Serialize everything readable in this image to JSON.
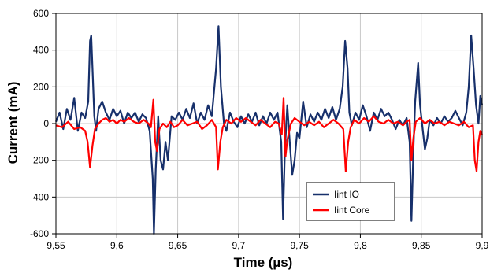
{
  "chart_data": {
    "type": "line",
    "title": "",
    "xlabel": "Time (µs)",
    "ylabel": "Current (mA)",
    "xlim": [
      9.55,
      9.9
    ],
    "ylim": [
      -600,
      600
    ],
    "x_ticks": [
      9.55,
      9.6,
      9.65,
      9.7,
      9.75,
      9.8,
      9.85,
      9.9
    ],
    "x_tick_labels": [
      "9,55",
      "9,6",
      "9,65",
      "9,7",
      "9,75",
      "9,8",
      "9,85",
      "9,9"
    ],
    "y_ticks": [
      -600,
      -400,
      -200,
      0,
      200,
      400,
      600
    ],
    "y_tick_labels": [
      "-600",
      "-400",
      "-200",
      "0",
      "200",
      "400",
      "600"
    ],
    "grid": true,
    "legend_position": "bottom-right",
    "series": [
      {
        "name": "Iint IO",
        "color": "#17306b",
        "points": [
          [
            9.55,
            10
          ],
          [
            9.553,
            60
          ],
          [
            9.556,
            -30
          ],
          [
            9.559,
            80
          ],
          [
            9.562,
            20
          ],
          [
            9.565,
            140
          ],
          [
            9.568,
            -40
          ],
          [
            9.571,
            60
          ],
          [
            9.574,
            30
          ],
          [
            9.5765,
            120
          ],
          [
            9.578,
            450
          ],
          [
            9.579,
            480
          ],
          [
            9.58,
            300
          ],
          [
            9.5815,
            40
          ],
          [
            9.583,
            -40
          ],
          [
            9.585,
            80
          ],
          [
            9.588,
            120
          ],
          [
            9.591,
            60
          ],
          [
            9.594,
            20
          ],
          [
            9.597,
            80
          ],
          [
            9.6,
            40
          ],
          [
            9.603,
            70
          ],
          [
            9.606,
            0
          ],
          [
            9.609,
            60
          ],
          [
            9.612,
            30
          ],
          [
            9.615,
            60
          ],
          [
            9.618,
            10
          ],
          [
            9.621,
            50
          ],
          [
            9.624,
            30
          ],
          [
            9.627,
            -40
          ],
          [
            9.6295,
            -300
          ],
          [
            9.6305,
            -600
          ],
          [
            9.632,
            -250
          ],
          [
            9.634,
            40
          ],
          [
            9.636,
            -200
          ],
          [
            9.638,
            -250
          ],
          [
            9.64,
            -100
          ],
          [
            9.642,
            -200
          ],
          [
            9.645,
            40
          ],
          [
            9.648,
            20
          ],
          [
            9.651,
            60
          ],
          [
            9.654,
            20
          ],
          [
            9.657,
            80
          ],
          [
            9.66,
            30
          ],
          [
            9.663,
            110
          ],
          [
            9.666,
            0
          ],
          [
            9.669,
            60
          ],
          [
            9.672,
            20
          ],
          [
            9.675,
            100
          ],
          [
            9.678,
            40
          ],
          [
            9.6815,
            300
          ],
          [
            9.6835,
            530
          ],
          [
            9.6855,
            200
          ],
          [
            9.688,
            0
          ],
          [
            9.69,
            -40
          ],
          [
            9.693,
            60
          ],
          [
            9.696,
            10
          ],
          [
            9.699,
            -20
          ],
          [
            9.702,
            40
          ],
          [
            9.705,
            0
          ],
          [
            9.708,
            50
          ],
          [
            9.711,
            10
          ],
          [
            9.714,
            60
          ],
          [
            9.717,
            -10
          ],
          [
            9.72,
            40
          ],
          [
            9.723,
            0
          ],
          [
            9.726,
            60
          ],
          [
            9.729,
            20
          ],
          [
            9.732,
            60
          ],
          [
            9.735,
            -100
          ],
          [
            9.7365,
            -520
          ],
          [
            9.738,
            -150
          ],
          [
            9.74,
            100
          ],
          [
            9.742,
            -100
          ],
          [
            9.744,
            -280
          ],
          [
            9.746,
            -200
          ],
          [
            9.748,
            -50
          ],
          [
            9.75,
            -80
          ],
          [
            9.753,
            120
          ],
          [
            9.756,
            -20
          ],
          [
            9.759,
            50
          ],
          [
            9.762,
            10
          ],
          [
            9.765,
            60
          ],
          [
            9.768,
            20
          ],
          [
            9.771,
            80
          ],
          [
            9.774,
            30
          ],
          [
            9.777,
            90
          ],
          [
            9.78,
            20
          ],
          [
            9.783,
            80
          ],
          [
            9.7855,
            200
          ],
          [
            9.7875,
            450
          ],
          [
            9.7895,
            300
          ],
          [
            9.791,
            60
          ],
          [
            9.793,
            -10
          ],
          [
            9.796,
            60
          ],
          [
            9.799,
            20
          ],
          [
            9.802,
            100
          ],
          [
            9.805,
            40
          ],
          [
            9.808,
            -40
          ],
          [
            9.811,
            60
          ],
          [
            9.814,
            20
          ],
          [
            9.817,
            80
          ],
          [
            9.82,
            40
          ],
          [
            9.823,
            60
          ],
          [
            9.826,
            20
          ],
          [
            9.829,
            -30
          ],
          [
            9.832,
            20
          ],
          [
            9.835,
            -10
          ],
          [
            9.838,
            30
          ],
          [
            9.8405,
            -100
          ],
          [
            9.842,
            -530
          ],
          [
            9.8435,
            -150
          ],
          [
            9.845,
            120
          ],
          [
            9.8475,
            330
          ],
          [
            9.849,
            100
          ],
          [
            9.851,
            -20
          ],
          [
            9.853,
            -140
          ],
          [
            9.855,
            -80
          ],
          [
            9.857,
            20
          ],
          [
            9.86,
            -10
          ],
          [
            9.863,
            30
          ],
          [
            9.866,
            0
          ],
          [
            9.869,
            40
          ],
          [
            9.872,
            10
          ],
          [
            9.875,
            30
          ],
          [
            9.878,
            70
          ],
          [
            9.881,
            30
          ],
          [
            9.884,
            -10
          ],
          [
            9.887,
            60
          ],
          [
            9.889,
            200
          ],
          [
            9.891,
            480
          ],
          [
            9.893,
            300
          ],
          [
            9.895,
            100
          ],
          [
            9.897,
            0
          ],
          [
            9.8985,
            150
          ],
          [
            9.9,
            100
          ]
        ]
      },
      {
        "name": "Iint Core",
        "color": "#ff0000",
        "points": [
          [
            9.55,
            -10
          ],
          [
            9.555,
            -20
          ],
          [
            9.56,
            10
          ],
          [
            9.565,
            -30
          ],
          [
            9.57,
            -20
          ],
          [
            9.574,
            -40
          ],
          [
            9.576,
            -100
          ],
          [
            9.578,
            -240
          ],
          [
            9.58,
            -120
          ],
          [
            9.582,
            -30
          ],
          [
            9.585,
            0
          ],
          [
            9.588,
            20
          ],
          [
            9.591,
            30
          ],
          [
            9.594,
            10
          ],
          [
            9.597,
            20
          ],
          [
            9.6,
            0
          ],
          [
            9.603,
            20
          ],
          [
            9.606,
            10
          ],
          [
            9.61,
            30
          ],
          [
            9.614,
            10
          ],
          [
            9.618,
            0
          ],
          [
            9.622,
            20
          ],
          [
            9.626,
            0
          ],
          [
            9.628,
            -20
          ],
          [
            9.63,
            130
          ],
          [
            9.6315,
            -100
          ],
          [
            9.633,
            -150
          ],
          [
            9.635,
            -30
          ],
          [
            9.638,
            0
          ],
          [
            9.641,
            -20
          ],
          [
            9.644,
            10
          ],
          [
            9.647,
            -20
          ],
          [
            9.65,
            -10
          ],
          [
            9.654,
            20
          ],
          [
            9.658,
            -10
          ],
          [
            9.662,
            0
          ],
          [
            9.666,
            10
          ],
          [
            9.67,
            -30
          ],
          [
            9.674,
            -10
          ],
          [
            9.678,
            20
          ],
          [
            9.6815,
            -20
          ],
          [
            9.683,
            -250
          ],
          [
            9.685,
            -100
          ],
          [
            9.687,
            -20
          ],
          [
            9.69,
            20
          ],
          [
            9.694,
            0
          ],
          [
            9.698,
            30
          ],
          [
            9.702,
            10
          ],
          [
            9.706,
            30
          ],
          [
            9.71,
            10
          ],
          [
            9.714,
            -10
          ],
          [
            9.718,
            20
          ],
          [
            9.722,
            0
          ],
          [
            9.726,
            -20
          ],
          [
            9.73,
            10
          ],
          [
            9.733,
            0
          ],
          [
            9.7355,
            -60
          ],
          [
            9.737,
            140
          ],
          [
            9.7385,
            -180
          ],
          [
            9.74,
            -90
          ],
          [
            9.743,
            0
          ],
          [
            9.746,
            30
          ],
          [
            9.75,
            10
          ],
          [
            9.754,
            -10
          ],
          [
            9.758,
            10
          ],
          [
            9.762,
            -10
          ],
          [
            9.766,
            10
          ],
          [
            9.77,
            -20
          ],
          [
            9.774,
            0
          ],
          [
            9.778,
            20
          ],
          [
            9.782,
            0
          ],
          [
            9.786,
            -30
          ],
          [
            9.788,
            -260
          ],
          [
            9.79,
            -100
          ],
          [
            9.792,
            -20
          ],
          [
            9.795,
            20
          ],
          [
            9.799,
            0
          ],
          [
            9.803,
            30
          ],
          [
            9.807,
            10
          ],
          [
            9.811,
            40
          ],
          [
            9.815,
            10
          ],
          [
            9.819,
            0
          ],
          [
            9.823,
            20
          ],
          [
            9.827,
            0
          ],
          [
            9.831,
            10
          ],
          [
            9.835,
            -10
          ],
          [
            9.838,
            10
          ],
          [
            9.8405,
            20
          ],
          [
            9.842,
            -200
          ],
          [
            9.8435,
            -80
          ],
          [
            9.8455,
            10
          ],
          [
            9.849,
            30
          ],
          [
            9.853,
            0
          ],
          [
            9.857,
            20
          ],
          [
            9.861,
            0
          ],
          [
            9.865,
            10
          ],
          [
            9.869,
            -10
          ],
          [
            9.873,
            10
          ],
          [
            9.877,
            0
          ],
          [
            9.881,
            -10
          ],
          [
            9.885,
            10
          ],
          [
            9.889,
            -20
          ],
          [
            9.8925,
            -10
          ],
          [
            9.894,
            -200
          ],
          [
            9.8955,
            -260
          ],
          [
            9.897,
            -100
          ],
          [
            9.8985,
            -40
          ],
          [
            9.9,
            -60
          ]
        ]
      }
    ]
  }
}
